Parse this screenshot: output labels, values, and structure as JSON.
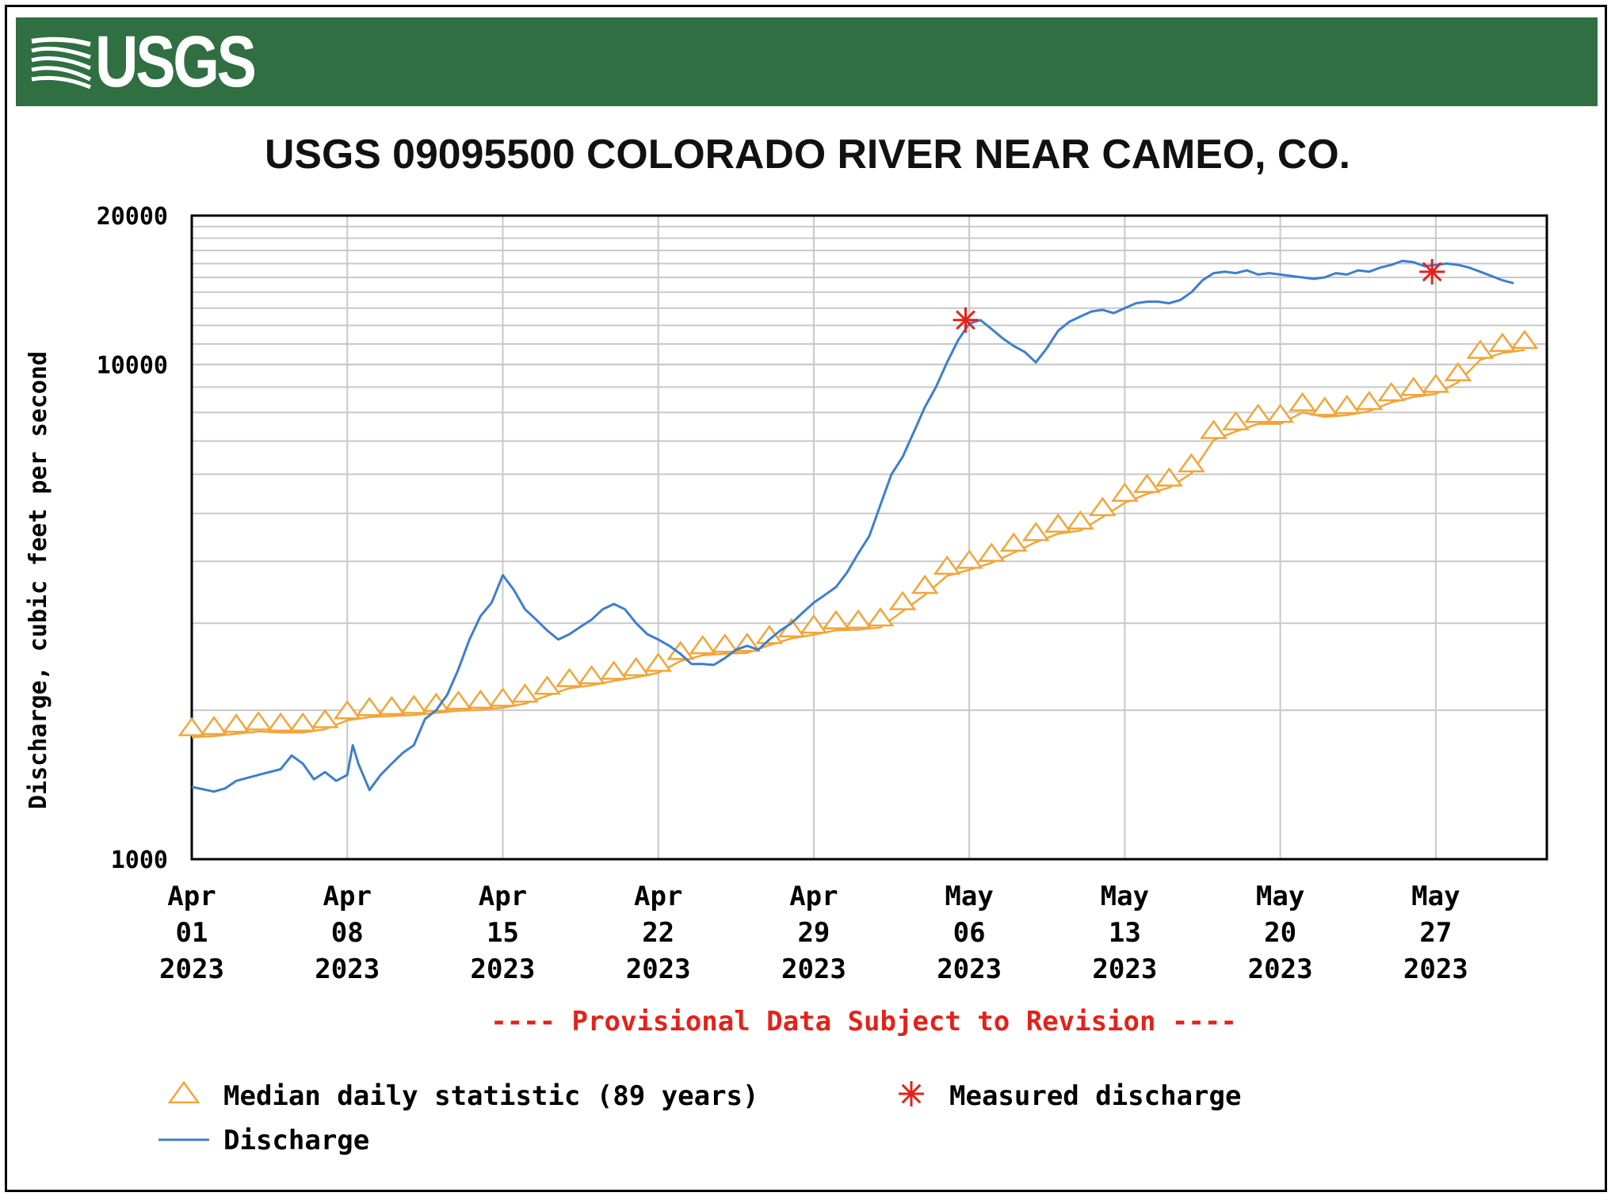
{
  "banner": {
    "logo_text": "USGS"
  },
  "chart_data": {
    "type": "line",
    "title": "USGS 09095500 COLORADO RIVER NEAR CAMEO, CO.",
    "ylabel": "Discharge, cubic feet per second",
    "xlabel": "",
    "y_scale": "log",
    "ylim": [
      1000,
      20000
    ],
    "xlim": [
      "2023-04-01",
      "2023-06-01"
    ],
    "grid": true,
    "y_ticks": [
      "1000",
      "10000",
      "20000"
    ],
    "x_ticks": [
      {
        "date": "2023-04-01",
        "label": [
          "Apr",
          "01",
          "2023"
        ]
      },
      {
        "date": "2023-04-08",
        "label": [
          "Apr",
          "08",
          "2023"
        ]
      },
      {
        "date": "2023-04-15",
        "label": [
          "Apr",
          "15",
          "2023"
        ]
      },
      {
        "date": "2023-04-22",
        "label": [
          "Apr",
          "22",
          "2023"
        ]
      },
      {
        "date": "2023-04-29",
        "label": [
          "Apr",
          "29",
          "2023"
        ]
      },
      {
        "date": "2023-05-06",
        "label": [
          "May",
          "06",
          "2023"
        ]
      },
      {
        "date": "2023-05-13",
        "label": [
          "May",
          "13",
          "2023"
        ]
      },
      {
        "date": "2023-05-20",
        "label": [
          "May",
          "20",
          "2023"
        ]
      },
      {
        "date": "2023-05-27",
        "label": [
          "May",
          "27",
          "2023"
        ]
      }
    ],
    "provisional_note": "---- Provisional Data Subject to Revision ----",
    "series": [
      {
        "name": "Discharge",
        "kind": "line",
        "color": "#3d7fcc",
        "points": [
          [
            "2023-04-01",
            1400
          ],
          [
            "2023-04-02",
            1370
          ],
          [
            "2023-04-02T12:00",
            1390
          ],
          [
            "2023-04-03",
            1440
          ],
          [
            "2023-04-04",
            1480
          ],
          [
            "2023-04-05",
            1520
          ],
          [
            "2023-04-05T12:00",
            1620
          ],
          [
            "2023-04-06",
            1560
          ],
          [
            "2023-04-06T12:00",
            1450
          ],
          [
            "2023-04-07",
            1500
          ],
          [
            "2023-04-07T12:00",
            1440
          ],
          [
            "2023-04-08",
            1480
          ],
          [
            "2023-04-08T06:00",
            1700
          ],
          [
            "2023-04-08T12:00",
            1560
          ],
          [
            "2023-04-09",
            1380
          ],
          [
            "2023-04-09T12:00",
            1480
          ],
          [
            "2023-04-10",
            1560
          ],
          [
            "2023-04-10T12:00",
            1640
          ],
          [
            "2023-04-11",
            1700
          ],
          [
            "2023-04-11T12:00",
            1920
          ],
          [
            "2023-04-12",
            2000
          ],
          [
            "2023-04-12T12:00",
            2150
          ],
          [
            "2023-04-13",
            2420
          ],
          [
            "2023-04-13T12:00",
            2780
          ],
          [
            "2023-04-14",
            3100
          ],
          [
            "2023-04-14T12:00",
            3300
          ],
          [
            "2023-04-15",
            3750
          ],
          [
            "2023-04-15T12:00",
            3500
          ],
          [
            "2023-04-16",
            3200
          ],
          [
            "2023-04-16T12:00",
            3050
          ],
          [
            "2023-04-17",
            2900
          ],
          [
            "2023-04-17T12:00",
            2780
          ],
          [
            "2023-04-18",
            2850
          ],
          [
            "2023-04-18T12:00",
            2950
          ],
          [
            "2023-04-19",
            3050
          ],
          [
            "2023-04-19T12:00",
            3200
          ],
          [
            "2023-04-20",
            3280
          ],
          [
            "2023-04-20T12:00",
            3200
          ],
          [
            "2023-04-21",
            3000
          ],
          [
            "2023-04-21T12:00",
            2850
          ],
          [
            "2023-04-22",
            2780
          ],
          [
            "2023-04-22T12:00",
            2700
          ],
          [
            "2023-04-23",
            2600
          ],
          [
            "2023-04-23T12:00",
            2480
          ],
          [
            "2023-04-24",
            2480
          ],
          [
            "2023-04-24T12:00",
            2470
          ],
          [
            "2023-04-25",
            2550
          ],
          [
            "2023-04-25T12:00",
            2650
          ],
          [
            "2023-04-26",
            2700
          ],
          [
            "2023-04-26T12:00",
            2650
          ],
          [
            "2023-04-27",
            2780
          ],
          [
            "2023-04-27T12:00",
            2900
          ],
          [
            "2023-04-28",
            3000
          ],
          [
            "2023-04-28T12:00",
            3150
          ],
          [
            "2023-04-29",
            3300
          ],
          [
            "2023-04-29T12:00",
            3420
          ],
          [
            "2023-04-30",
            3550
          ],
          [
            "2023-04-30T12:00",
            3800
          ],
          [
            "2023-05-01",
            4150
          ],
          [
            "2023-05-01T12:00",
            4500
          ],
          [
            "2023-05-02",
            5200
          ],
          [
            "2023-05-02T12:00",
            6000
          ],
          [
            "2023-05-03",
            6500
          ],
          [
            "2023-05-03T12:00",
            7300
          ],
          [
            "2023-05-04",
            8200
          ],
          [
            "2023-05-04T12:00",
            9000
          ],
          [
            "2023-05-05",
            10100
          ],
          [
            "2023-05-05T12:00",
            11200
          ],
          [
            "2023-05-06",
            12100
          ],
          [
            "2023-05-06T12:00",
            12300
          ],
          [
            "2023-05-07",
            11800
          ],
          [
            "2023-05-07T12:00",
            11300
          ],
          [
            "2023-05-08",
            10900
          ],
          [
            "2023-05-08T12:00",
            10600
          ],
          [
            "2023-05-09",
            10100
          ],
          [
            "2023-05-09T12:00",
            10800
          ],
          [
            "2023-05-10",
            11700
          ],
          [
            "2023-05-10T12:00",
            12200
          ],
          [
            "2023-05-11",
            12500
          ],
          [
            "2023-05-11T12:00",
            12800
          ],
          [
            "2023-05-12",
            12900
          ],
          [
            "2023-05-12T12:00",
            12700
          ],
          [
            "2023-05-13",
            13000
          ],
          [
            "2023-05-13T12:00",
            13300
          ],
          [
            "2023-05-14",
            13400
          ],
          [
            "2023-05-14T12:00",
            13400
          ],
          [
            "2023-05-15",
            13300
          ],
          [
            "2023-05-15T12:00",
            13500
          ],
          [
            "2023-05-16",
            14000
          ],
          [
            "2023-05-16T12:00",
            14800
          ],
          [
            "2023-05-17",
            15300
          ],
          [
            "2023-05-17T12:00",
            15400
          ],
          [
            "2023-05-18",
            15300
          ],
          [
            "2023-05-18T12:00",
            15500
          ],
          [
            "2023-05-19",
            15200
          ],
          [
            "2023-05-19T12:00",
            15300
          ],
          [
            "2023-05-20",
            15200
          ],
          [
            "2023-05-20T12:00",
            15100
          ],
          [
            "2023-05-21",
            15000
          ],
          [
            "2023-05-21T12:00",
            14900
          ],
          [
            "2023-05-22",
            15000
          ],
          [
            "2023-05-22T12:00",
            15300
          ],
          [
            "2023-05-23",
            15200
          ],
          [
            "2023-05-23T12:00",
            15500
          ],
          [
            "2023-05-24",
            15400
          ],
          [
            "2023-05-24T12:00",
            15700
          ],
          [
            "2023-05-25",
            15900
          ],
          [
            "2023-05-25T12:00",
            16200
          ],
          [
            "2023-05-26",
            16100
          ],
          [
            "2023-05-26T12:00",
            15800
          ],
          [
            "2023-05-27",
            15900
          ],
          [
            "2023-05-27T12:00",
            16000
          ],
          [
            "2023-05-28",
            15900
          ],
          [
            "2023-05-28T12:00",
            15700
          ],
          [
            "2023-05-29",
            15400
          ],
          [
            "2023-05-29T12:00",
            15100
          ],
          [
            "2023-05-30",
            14800
          ],
          [
            "2023-05-30T12:00",
            14600
          ]
        ]
      },
      {
        "name": "Median daily statistic (89 years)",
        "kind": "markers",
        "marker": "triangle",
        "color": "#f2a53a",
        "points": [
          [
            "2023-04-01",
            1830
          ],
          [
            "2023-04-02",
            1840
          ],
          [
            "2023-04-03",
            1860
          ],
          [
            "2023-04-04",
            1880
          ],
          [
            "2023-04-05",
            1870
          ],
          [
            "2023-04-06",
            1870
          ],
          [
            "2023-04-07",
            1900
          ],
          [
            "2023-04-08",
            1980
          ],
          [
            "2023-04-09",
            2010
          ],
          [
            "2023-04-10",
            2020
          ],
          [
            "2023-04-11",
            2030
          ],
          [
            "2023-04-12",
            2050
          ],
          [
            "2023-04-13",
            2070
          ],
          [
            "2023-04-14",
            2080
          ],
          [
            "2023-04-15",
            2100
          ],
          [
            "2023-04-16",
            2140
          ],
          [
            "2023-04-17",
            2220
          ],
          [
            "2023-04-18",
            2300
          ],
          [
            "2023-04-19",
            2330
          ],
          [
            "2023-04-20",
            2380
          ],
          [
            "2023-04-21",
            2420
          ],
          [
            "2023-04-22",
            2470
          ],
          [
            "2023-04-23",
            2610
          ],
          [
            "2023-04-24",
            2680
          ],
          [
            "2023-04-25",
            2700
          ],
          [
            "2023-04-26",
            2710
          ],
          [
            "2023-04-27",
            2810
          ],
          [
            "2023-04-28",
            2900
          ],
          [
            "2023-04-29",
            2950
          ],
          [
            "2023-04-30",
            3010
          ],
          [
            "2023-05-01",
            3020
          ],
          [
            "2023-05-02",
            3050
          ],
          [
            "2023-05-03",
            3290
          ],
          [
            "2023-05-04",
            3550
          ],
          [
            "2023-05-05",
            3880
          ],
          [
            "2023-05-06",
            3990
          ],
          [
            "2023-05-07",
            4120
          ],
          [
            "2023-05-08",
            4320
          ],
          [
            "2023-05-09",
            4540
          ],
          [
            "2023-05-10",
            4720
          ],
          [
            "2023-05-11",
            4790
          ],
          [
            "2023-05-12",
            5100
          ],
          [
            "2023-05-13",
            5450
          ],
          [
            "2023-05-14",
            5680
          ],
          [
            "2023-05-15",
            5850
          ],
          [
            "2023-05-16",
            6250
          ],
          [
            "2023-05-17",
            7300
          ],
          [
            "2023-05-18",
            7600
          ],
          [
            "2023-05-19",
            7870
          ],
          [
            "2023-05-20",
            7870
          ],
          [
            "2023-05-21",
            8300
          ],
          [
            "2023-05-22",
            8130
          ],
          [
            "2023-05-23",
            8200
          ],
          [
            "2023-05-24",
            8350
          ],
          [
            "2023-05-25",
            8700
          ],
          [
            "2023-05-26",
            8920
          ],
          [
            "2023-05-27",
            9050
          ],
          [
            "2023-05-28",
            9550
          ],
          [
            "2023-05-29",
            10600
          ],
          [
            "2023-05-30",
            10950
          ],
          [
            "2023-05-31",
            11100
          ]
        ]
      },
      {
        "name": "Measured discharge",
        "kind": "markers",
        "marker": "asterisk",
        "color": "#e2231a",
        "points": [
          [
            "2023-05-05T20:00",
            12300
          ],
          [
            "2023-05-26T20:00",
            15400
          ]
        ]
      }
    ],
    "legend": [
      {
        "label": "Median daily statistic (89 years)",
        "marker": "triangle",
        "color": "#f2a53a"
      },
      {
        "label": "Measured discharge",
        "marker": "asterisk",
        "color": "#e2231a"
      },
      {
        "label": "Discharge",
        "marker": "line",
        "color": "#3d7fcc"
      }
    ],
    "legend_position": "bottom"
  }
}
